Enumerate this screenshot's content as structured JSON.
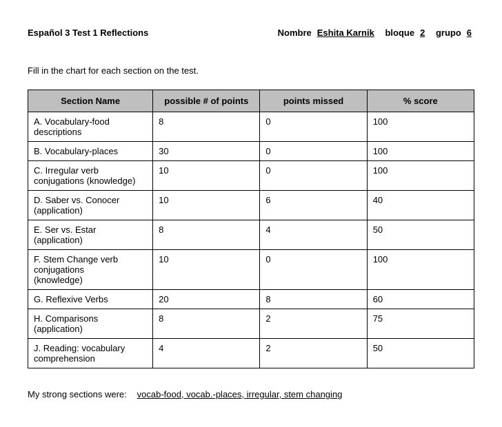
{
  "header": {
    "title": "Español 3 Test 1 Reflections",
    "nombre_label": "Nombre",
    "nombre_value": "Eshita Karnik",
    "bloque_label": "bloque",
    "bloque_value": "2",
    "grupo_label": "grupo",
    "grupo_value": "6"
  },
  "instruction": "Fill in the chart for each section on the test.",
  "table": {
    "columns": [
      "Section Name",
      "possible # of points",
      "points missed",
      "% score"
    ],
    "rows": [
      [
        "A.  Vocabulary-food\n     descriptions",
        "8",
        "0",
        "100"
      ],
      [
        "B. Vocabulary-places",
        "30",
        "0",
        "100"
      ],
      [
        "C. Irregular verb\n   conjugations (knowledge)",
        "10",
        "0",
        "100"
      ],
      [
        "D. Saber vs. Conocer\n   (application)",
        "10",
        "6",
        "40"
      ],
      [
        "E. Ser vs. Estar\n   (application)",
        "8",
        "4",
        "50"
      ],
      [
        "F. Stem Change verb\n    conjugations\n    (knowledge)",
        "10",
        "0",
        "100"
      ],
      [
        "G. Reflexive Verbs",
        "20",
        "8",
        "60"
      ],
      [
        "H. Comparisons\n(application)",
        "8",
        "2",
        "75"
      ],
      [
        "J. Reading: vocabulary\n   comprehension",
        "4",
        "2",
        "50"
      ]
    ]
  },
  "strong": {
    "label": "My strong sections were:",
    "value": "vocab-food, vocab.-places, irregular, stem changing"
  }
}
